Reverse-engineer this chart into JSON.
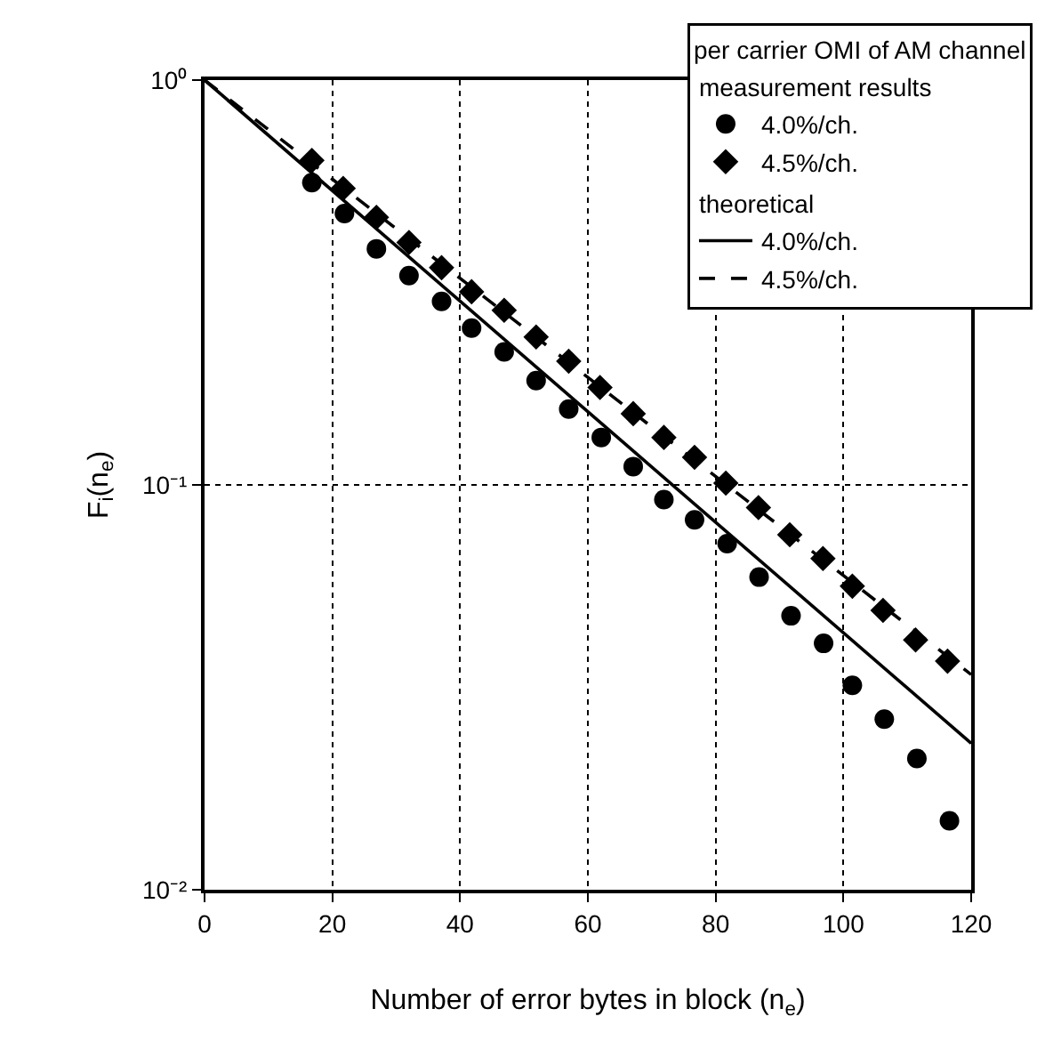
{
  "chart_data": {
    "type": "scatter",
    "xlabel": "Number of error bytes in block (n$_{e}$)",
    "ylabel": "F$_{i}$(n$_{e}$)",
    "legend_title": "per carrier OMI of AM channel",
    "annotations": [
      "measurement results",
      "theoretical"
    ],
    "log": "y",
    "grid": true,
    "legend": "top right",
    "xlim": [
      0,
      120
    ],
    "xticks": [
      0,
      20,
      40,
      60,
      80,
      100,
      120
    ],
    "ylim": [
      0.01,
      1
    ],
    "yticks": [
      {
        "value": 0.01,
        "label": "10⁻²"
      },
      {
        "value": 0.1,
        "label": "10⁻¹"
      },
      {
        "value": 1,
        "label": "10⁰"
      }
    ],
    "series": [
      {
        "name": "4.0%/ch.",
        "marker": "circle",
        "color": "#000000",
        "x": [
          16.8,
          21.9,
          26.9,
          32.0,
          37.1,
          41.8,
          46.9,
          51.9,
          57.0,
          62.1,
          67.1,
          71.9,
          76.7,
          81.8,
          86.8,
          91.8,
          96.9,
          101.4,
          106.4,
          111.5,
          116.6
        ],
        "values": [
          0.558,
          0.468,
          0.383,
          0.329,
          0.284,
          0.244,
          0.213,
          0.181,
          0.154,
          0.131,
          0.111,
          0.092,
          0.082,
          0.0716,
          0.0592,
          0.0475,
          0.0406,
          0.032,
          0.0264,
          0.0211,
          0.0148
        ]
      },
      {
        "name": "4.5%/ch.",
        "marker": "diamond",
        "color": "#000000",
        "x": [
          16.8,
          21.7,
          26.9,
          32.0,
          37.1,
          41.8,
          46.9,
          51.9,
          57.0,
          61.9,
          67.1,
          71.9,
          76.7,
          81.6,
          86.7,
          91.6,
          96.8,
          101.4,
          106.2,
          111.3,
          116.3
        ],
        "values": [
          0.633,
          0.54,
          0.458,
          0.397,
          0.344,
          0.3,
          0.27,
          0.232,
          0.202,
          0.174,
          0.15,
          0.131,
          0.117,
          0.101,
          0.0879,
          0.0753,
          0.0658,
          0.0562,
          0.049,
          0.0414,
          0.0367
        ]
      },
      {
        "name": "4.0%/ch.",
        "type": "line",
        "line_style": "solid",
        "color": "#000000",
        "x": [
          0,
          120
        ],
        "values": [
          1,
          0.023
        ]
      },
      {
        "name": "4.5%/ch.",
        "type": "line",
        "line_style": "dashed",
        "color": "#000000",
        "x": [
          0,
          120
        ],
        "values": [
          1,
          0.034
        ]
      }
    ]
  }
}
